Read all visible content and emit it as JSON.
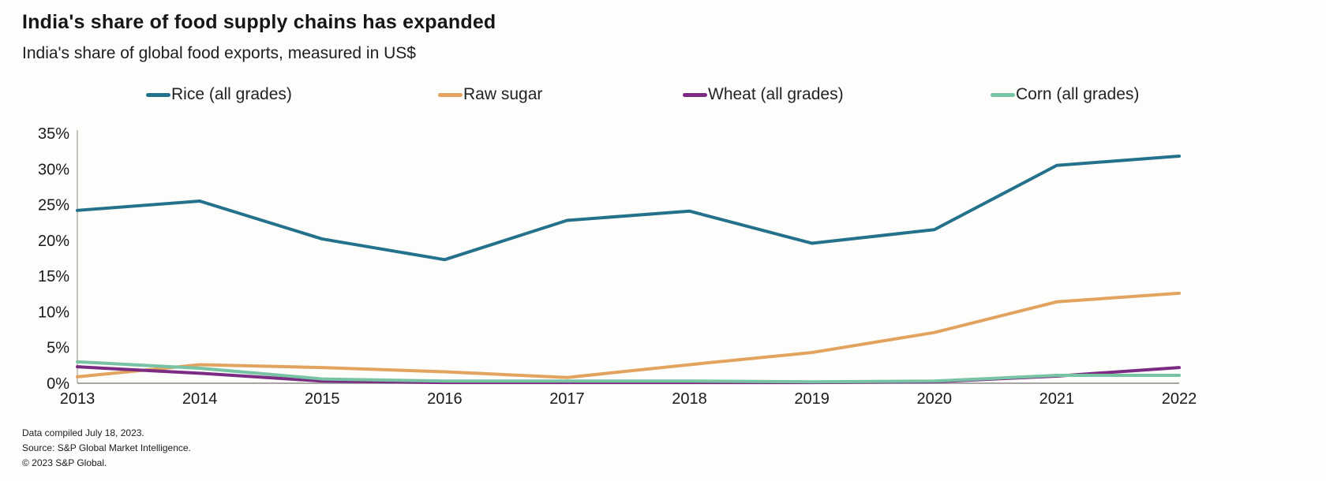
{
  "header": {
    "title": "India's share of food supply chains has expanded",
    "subtitle": "India's share of global food exports, measured in US$"
  },
  "chart_data": {
    "type": "line",
    "x": [
      2013,
      2014,
      2015,
      2016,
      2017,
      2018,
      2019,
      2020,
      2021,
      2022
    ],
    "series": [
      {
        "name": "Rice (all grades)",
        "color": "#24718c",
        "values": [
          24.2,
          25.5,
          20.2,
          17.3,
          22.8,
          24.1,
          19.6,
          21.5,
          30.5,
          31.8
        ]
      },
      {
        "name": "Raw sugar",
        "color": "#e2a35e",
        "values": [
          0.9,
          2.6,
          2.2,
          1.6,
          0.8,
          2.6,
          4.3,
          7.1,
          11.4,
          12.6
        ]
      },
      {
        "name": "Wheat (all grades)",
        "color": "#7b2c82",
        "values": [
          2.3,
          1.4,
          0.3,
          0.1,
          0.1,
          0.1,
          0.1,
          0.2,
          1.0,
          2.2
        ]
      },
      {
        "name": "Corn (all grades)",
        "color": "#77c3a4",
        "values": [
          3.0,
          2.1,
          0.6,
          0.3,
          0.3,
          0.3,
          0.2,
          0.3,
          1.1,
          1.1
        ]
      }
    ],
    "ylim": [
      0,
      35
    ],
    "ytick_step": 5,
    "ytick_suffix": "%",
    "grid": false,
    "legend_position": "top",
    "axis_color": "#b5b2ad",
    "baseline_color": "#8c8a86"
  },
  "footer": {
    "lines": [
      "Data compiled July 18, 2023.",
      "Source: S&P Global Market Intelligence.",
      "© 2023 S&P Global."
    ]
  }
}
